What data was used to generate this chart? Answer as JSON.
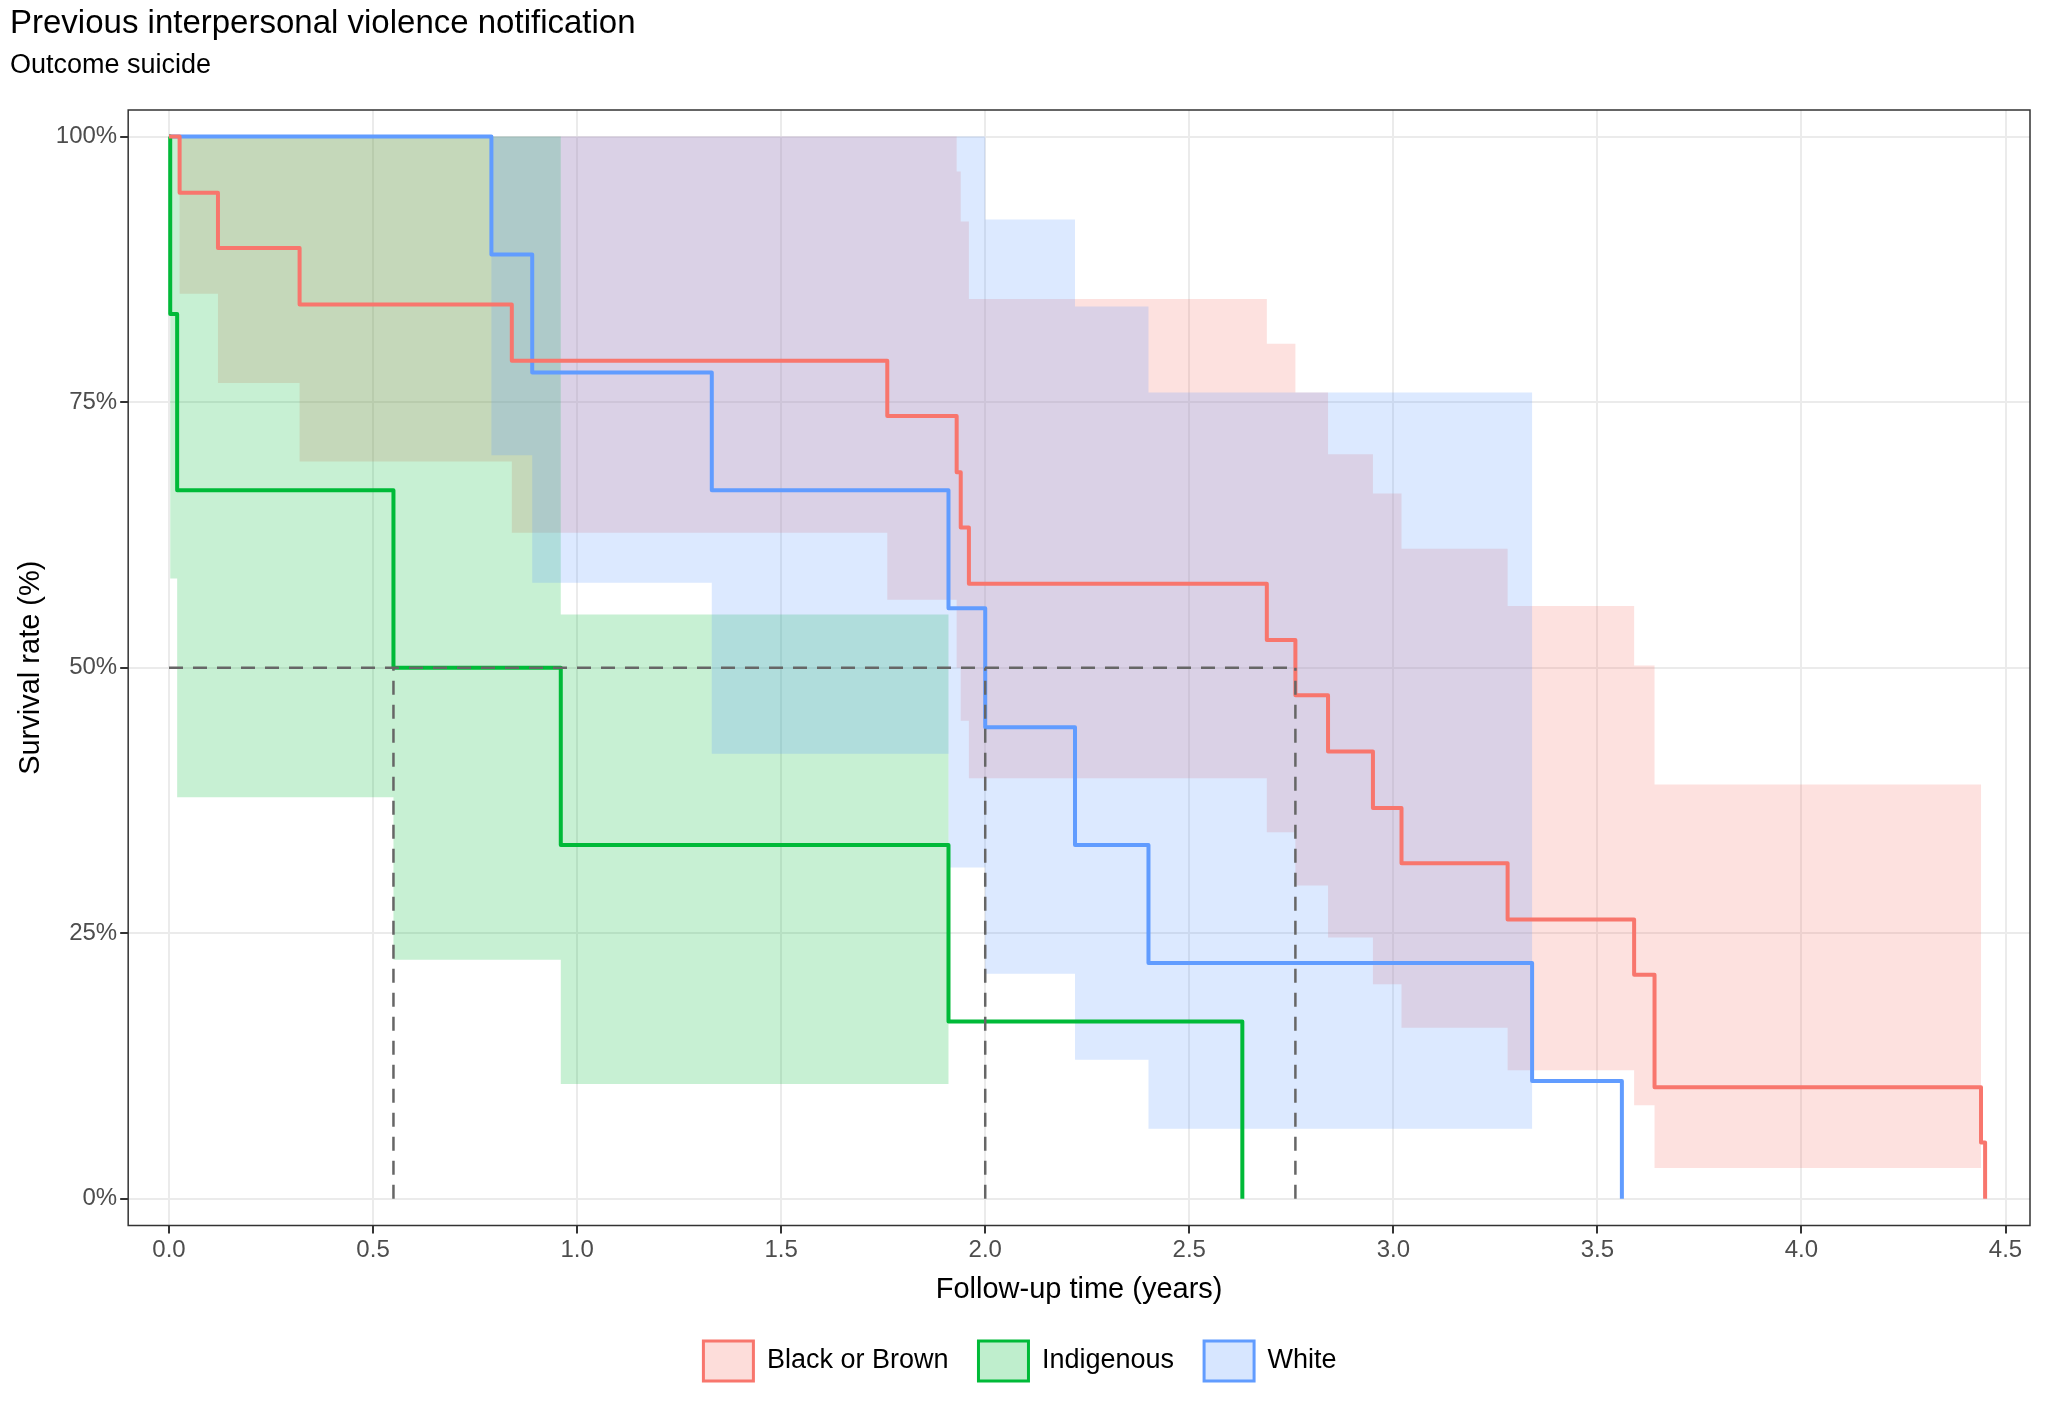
{
  "chart_data": {
    "type": "step",
    "title": "Previous interpersonal violence notification",
    "subtitle": "Outcome suicide",
    "xlabel": "Follow-up time (years)",
    "ylabel": "Survival rate (%)",
    "xlim": [
      -0.1,
      4.56
    ],
    "ylim": [
      -2.5,
      102.5
    ],
    "xticks": [
      {
        "value": 0,
        "label": "0.0"
      },
      0.5,
      {
        "value": 1,
        "label": "1.0"
      },
      1.5,
      {
        "value": 2,
        "label": "2.0"
      },
      2.5,
      {
        "value": 3,
        "label": "3.0"
      },
      3.5,
      {
        "value": 4,
        "label": "4.0"
      },
      4.5
    ],
    "yticks": [
      {
        "value": 0,
        "label": "0%"
      },
      {
        "value": 25,
        "label": "25%"
      },
      {
        "value": 50,
        "label": "50%"
      },
      {
        "value": 75,
        "label": "75%"
      },
      {
        "value": 100,
        "label": "100%"
      }
    ],
    "grid": true,
    "legend": "bottom",
    "series": [
      {
        "name": "Black or Brown",
        "color": "#f8766d",
        "x": [
          0,
          0.026,
          0.12,
          0.32,
          0.84,
          1.76,
          1.93,
          1.94,
          1.96,
          2.69,
          2.76,
          2.84,
          2.95,
          3.02,
          3.28,
          3.59,
          3.64,
          4.44,
          4.45
        ],
        "values": [
          100,
          94.7,
          89.5,
          84.2,
          78.9,
          73.7,
          68.4,
          63.2,
          57.9,
          52.6,
          47.4,
          42.1,
          36.8,
          31.6,
          26.3,
          21.1,
          10.5,
          5.3,
          0
        ],
        "lower": [
          null,
          85.2,
          76.8,
          69.4,
          62.7,
          56.4,
          50,
          45,
          39.6,
          34.5,
          29.5,
          24.6,
          20.2,
          16.1,
          12.1,
          8.8,
          2.9,
          2.9,
          null
        ],
        "upper": [
          null,
          100,
          100,
          100,
          100,
          100,
          96.7,
          92,
          84.7,
          80.5,
          75.9,
          70.1,
          66.4,
          61.2,
          55.8,
          50.2,
          39,
          39,
          null
        ]
      },
      {
        "name": "Indigenous",
        "color": "#00ba38",
        "x": [
          0,
          0.003,
          0.02,
          0.55,
          0.96,
          1.91,
          2.63
        ],
        "values": [
          100,
          83.3,
          66.7,
          50,
          33.3,
          16.7,
          0
        ],
        "lower": [
          null,
          58.4,
          37.8,
          22.5,
          10.8,
          10.8,
          null
        ],
        "upper": [
          null,
          100,
          100,
          100,
          55,
          55,
          null
        ]
      },
      {
        "name": "White",
        "color": "#619cff",
        "x": [
          0,
          0.79,
          0.89,
          1.33,
          1.91,
          2.0,
          2.22,
          2.4,
          3.34,
          3.56
        ],
        "values": [
          100,
          88.9,
          77.8,
          66.7,
          55.6,
          44.4,
          33.3,
          22.2,
          11.1,
          0
        ],
        "lower": [
          null,
          70,
          58,
          41.9,
          31.2,
          21.2,
          13.1,
          6.6,
          6.6,
          null
        ],
        "upper": [
          null,
          100,
          100,
          100,
          100,
          92.2,
          84,
          75.9,
          75.9,
          null
        ]
      }
    ],
    "ref_lines": [
      {
        "axis": "y",
        "value": 50,
        "line_style": "dashed",
        "color": "#666666"
      },
      {
        "axis": "x",
        "value": 0.55,
        "line_style": "dashed",
        "color": "#666666"
      },
      {
        "axis": "x",
        "value": 2.0,
        "line_style": "dashed",
        "color": "#666666"
      },
      {
        "axis": "x",
        "value": 2.76,
        "line_style": "dashed",
        "color": "#666666"
      }
    ]
  }
}
